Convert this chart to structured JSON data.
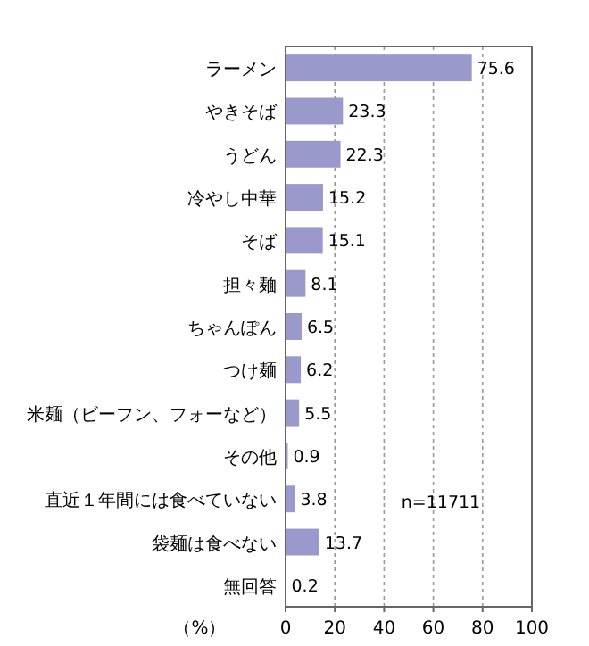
{
  "chart_data": {
    "type": "bar",
    "orientation": "horizontal",
    "xlabel": "（%）",
    "categories": [
      "ラーメン",
      "やきそば",
      "うどん",
      "冷やし中華",
      "そば",
      "担々麺",
      "ちゃんぽん",
      "つけ麺",
      "米麺（ビーフン、フォーなど）",
      "その他",
      "直近１年間には食べていない",
      "袋麺は食べない",
      "無回答"
    ],
    "values": [
      75.6,
      23.3,
      22.3,
      15.2,
      15.1,
      8.1,
      6.5,
      6.2,
      5.5,
      0.9,
      3.8,
      13.7,
      0.2
    ],
    "color": "#9999cc",
    "data_labels": true,
    "xlim": [
      0,
      100
    ],
    "xticks": [
      0,
      20,
      40,
      60,
      80,
      100
    ],
    "grid": "x",
    "annotations": [
      "n=11711"
    ]
  }
}
